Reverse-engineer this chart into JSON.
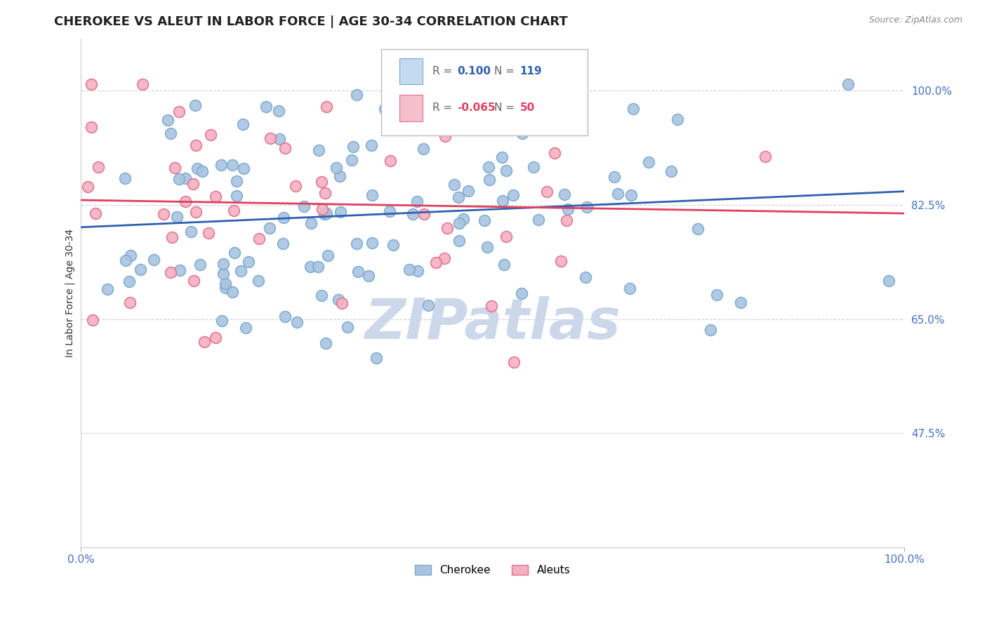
{
  "title": "CHEROKEE VS ALEUT IN LABOR FORCE | AGE 30-34 CORRELATION CHART",
  "source_text": "Source: ZipAtlas.com",
  "ylabel": "In Labor Force | Age 30-34",
  "x_tick_labels": [
    "0.0%",
    "100.0%"
  ],
  "y_tick_labels": [
    "47.5%",
    "65.0%",
    "82.5%",
    "100.0%"
  ],
  "y_tick_values": [
    0.475,
    0.65,
    0.825,
    1.0
  ],
  "x_lim": [
    0.0,
    1.0
  ],
  "y_lim": [
    0.3,
    1.08
  ],
  "cherokee_R": 0.1,
  "cherokee_N": 119,
  "aleut_R": -0.065,
  "aleut_N": 50,
  "cherokee_color": "#aac4e0",
  "cherokee_edge": "#7aaacf",
  "aleut_color": "#f5b0c0",
  "aleut_edge": "#e07090",
  "trend_blue": "#3060b0",
  "trend_pink": "#e04060",
  "background_color": "#ffffff",
  "watermark_color": "#ccd8ea",
  "legend_box_cherokee": "#c5d9f0",
  "legend_box_aleut": "#f5c0cb",
  "title_fontsize": 13,
  "axis_label_fontsize": 10,
  "tick_fontsize": 11,
  "legend_fontsize": 12,
  "tick_color": "#4472c4",
  "cherokee_seed": 42,
  "aleut_seed": 7
}
